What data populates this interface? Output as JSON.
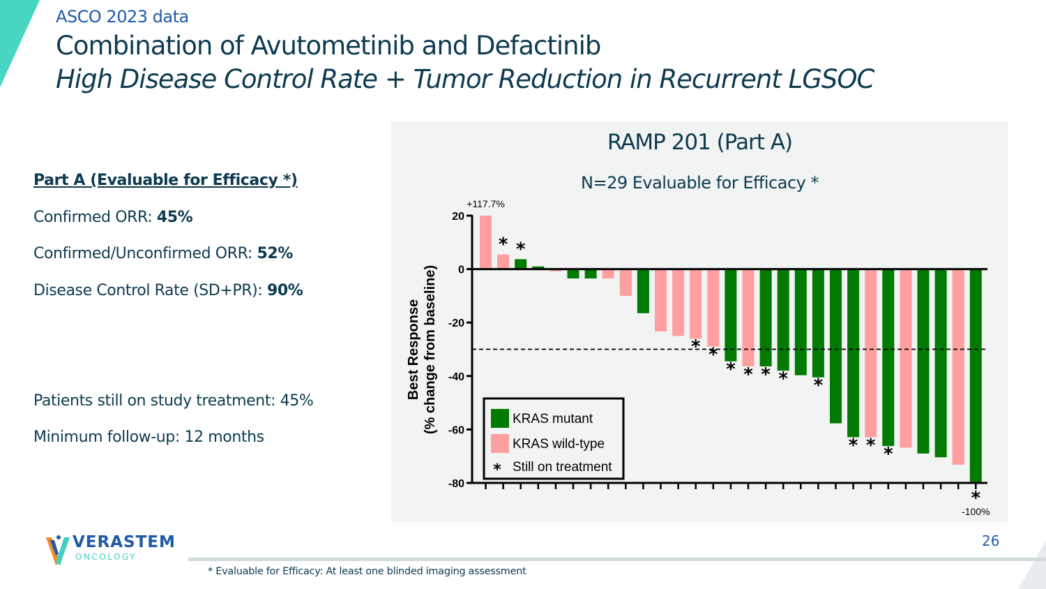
{
  "header": {
    "eyebrow": "ASCO 2023 data",
    "title": "Combination of Avutometinib and Defactinib",
    "subtitle": "High Disease Control Rate + Tumor Reduction in Recurrent LGSOC"
  },
  "summary": {
    "heading": "Part A (Evaluable for Efficacy *)",
    "items": [
      {
        "label": "Confirmed ORR: ",
        "value": "45%"
      },
      {
        "label": "Confirmed/Unconfirmed ORR: ",
        "value": "52%"
      },
      {
        "label": "Disease Control Rate (SD+PR): ",
        "value": "90%"
      }
    ],
    "notes": [
      "Patients still on study treatment: 45%",
      "Minimum follow-up: 12 months"
    ]
  },
  "chart_data": {
    "type": "bar",
    "title": "RAMP 201 (Part A)",
    "subtitle": "N=29 Evaluable for Efficacy *",
    "ylabel_line1": "Best Response",
    "ylabel_line2": "(% change from baseline)",
    "xlabel": "",
    "ylim": [
      -80,
      20
    ],
    "yticks": [
      20,
      0,
      -20,
      -40,
      -60,
      -80
    ],
    "reference_line": -30,
    "grid": false,
    "legend_position": "bottom-left",
    "legend": [
      {
        "key": "mutant",
        "label": "KRAS mutant",
        "color": "#007a00"
      },
      {
        "key": "wildtype",
        "label": "KRAS wild-type",
        "color": "#ff9f9f"
      },
      {
        "key": "on_treatment",
        "label": "Still on treatment",
        "symbol": "*"
      }
    ],
    "bars": [
      {
        "value": 117.7,
        "type": "wildtype",
        "on_treatment": false,
        "label": "+117.7%"
      },
      {
        "value": 5.5,
        "type": "wildtype",
        "on_treatment": true
      },
      {
        "value": 3.7,
        "type": "mutant",
        "on_treatment": true
      },
      {
        "value": 1.0,
        "type": "mutant",
        "on_treatment": false
      },
      {
        "value": -0.8,
        "type": "wildtype",
        "on_treatment": false
      },
      {
        "value": -3.5,
        "type": "mutant",
        "on_treatment": false
      },
      {
        "value": -3.5,
        "type": "mutant",
        "on_treatment": false
      },
      {
        "value": -3.5,
        "type": "wildtype",
        "on_treatment": false
      },
      {
        "value": -10.0,
        "type": "wildtype",
        "on_treatment": false
      },
      {
        "value": -16.5,
        "type": "mutant",
        "on_treatment": false
      },
      {
        "value": -23.3,
        "type": "wildtype",
        "on_treatment": false
      },
      {
        "value": -25.0,
        "type": "wildtype",
        "on_treatment": false
      },
      {
        "value": -26.0,
        "type": "wildtype",
        "on_treatment": true
      },
      {
        "value": -29.0,
        "type": "wildtype",
        "on_treatment": true
      },
      {
        "value": -34.5,
        "type": "mutant",
        "on_treatment": true
      },
      {
        "value": -36.4,
        "type": "wildtype",
        "on_treatment": true
      },
      {
        "value": -36.4,
        "type": "mutant",
        "on_treatment": true
      },
      {
        "value": -38.0,
        "type": "mutant",
        "on_treatment": true
      },
      {
        "value": -39.7,
        "type": "mutant",
        "on_treatment": false
      },
      {
        "value": -40.5,
        "type": "mutant",
        "on_treatment": true
      },
      {
        "value": -57.7,
        "type": "mutant",
        "on_treatment": false
      },
      {
        "value": -62.9,
        "type": "mutant",
        "on_treatment": true
      },
      {
        "value": -62.9,
        "type": "wildtype",
        "on_treatment": true
      },
      {
        "value": -66.2,
        "type": "mutant",
        "on_treatment": true
      },
      {
        "value": -66.8,
        "type": "wildtype",
        "on_treatment": false
      },
      {
        "value": -69.0,
        "type": "mutant",
        "on_treatment": false
      },
      {
        "value": -70.4,
        "type": "mutant",
        "on_treatment": false
      },
      {
        "value": -73.2,
        "type": "wildtype",
        "on_treatment": false
      },
      {
        "value": -100.0,
        "type": "mutant",
        "on_treatment": true,
        "label": "-100%"
      }
    ]
  },
  "footer": {
    "logo_word": "VERASTEM",
    "logo_sub": "ONCOLOGY",
    "page_number": "26",
    "footnote": "* Evaluable for Efficacy: At least one blinded imaging assessment"
  },
  "colors": {
    "brand_blue": "#1f5aa6",
    "navy_text": "#0d3a4f",
    "teal": "#46cdbf",
    "orange": "#f28c28",
    "panel_bg": "#f2f3f3"
  }
}
